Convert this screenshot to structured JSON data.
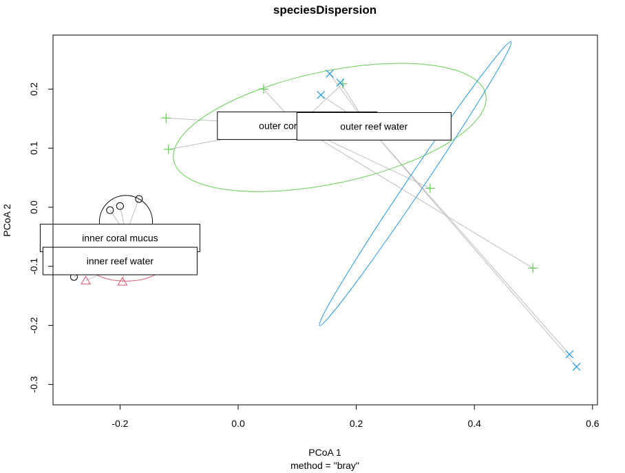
{
  "chart_data": {
    "type": "scatter",
    "title": "speciesDispersion",
    "xlabel": "PCoA 1",
    "ylabel": "PCoA 2",
    "subtitle": "method = \"bray\"",
    "xlim": [
      -0.32,
      0.61
    ],
    "ylim": [
      -0.335,
      0.29
    ],
    "x_ticks": [
      -0.2,
      0.0,
      0.2,
      0.4,
      0.6
    ],
    "y_ticks": [
      -0.3,
      -0.2,
      -0.1,
      0.0,
      0.1,
      0.2
    ],
    "x_tick_labels": [
      "-0.2",
      "0.0",
      "0.2",
      "0.4",
      "0.6"
    ],
    "y_tick_labels": [
      "-0.3",
      "-0.2",
      "-0.1",
      "0.0",
      "0.1",
      "0.2"
    ],
    "grid": false,
    "series": [
      {
        "name": "inner coral mucus",
        "color": "#000000",
        "marker": "circle",
        "centroid": [
          -0.19,
          -0.045
        ],
        "points": [
          [
            -0.217,
            -0.005
          ],
          [
            -0.2,
            0.002
          ],
          [
            -0.168,
            0.014
          ],
          [
            -0.278,
            -0.118
          ]
        ],
        "ellipse": {
          "cx": -0.19,
          "cy": -0.025,
          "rx": 0.045,
          "ry": 0.045,
          "angle": 0
        }
      },
      {
        "name": "inner reef water",
        "color": "#DF536B",
        "marker": "triangle",
        "centroid": [
          -0.19,
          -0.095
        ],
        "points": [
          [
            -0.258,
            -0.124
          ],
          [
            -0.196,
            -0.126
          ]
        ],
        "ellipse": {
          "cx": -0.19,
          "cy": -0.095,
          "rx": 0.065,
          "ry": 0.03,
          "angle": 0
        }
      },
      {
        "name": "outer coral mucus",
        "color": "#61D04F",
        "marker": "plus",
        "centroid": [
          0.1,
          0.138
        ],
        "points": [
          [
            0.043,
            0.2
          ],
          [
            -0.122,
            0.151
          ],
          [
            -0.118,
            0.098
          ],
          [
            0.177,
            0.209
          ],
          [
            0.325,
            0.032
          ],
          [
            0.499,
            -0.103
          ]
        ],
        "ellipse": {
          "cx": 0.155,
          "cy": 0.135,
          "rx": 0.27,
          "ry": 0.095,
          "angle": -12
        }
      },
      {
        "name": "outer reef water",
        "color": "#2297E6",
        "marker": "x",
        "centroid": [
          0.22,
          0.137
        ],
        "points": [
          [
            0.155,
            0.226
          ],
          [
            0.14,
            0.19
          ],
          [
            0.173,
            0.211
          ],
          [
            0.561,
            -0.249
          ],
          [
            0.573,
            -0.27
          ]
        ],
        "ellipse": {
          "cx": 0.3,
          "cy": 0.04,
          "rx": 0.29,
          "ry": 0.014,
          "angle": -56
        }
      }
    ],
    "labels": [
      {
        "text": "outer coral mucus",
        "x": 0.1,
        "y": 0.138,
        "group": "outer coral mucus"
      },
      {
        "text": "outer reef water",
        "x": 0.23,
        "y": 0.137,
        "group": "outer reef water"
      },
      {
        "text": "inner coral mucus",
        "x": -0.2,
        "y": -0.052,
        "group": "inner coral mucus"
      },
      {
        "text": "inner reef water",
        "x": -0.2,
        "y": -0.091,
        "group": "inner reef water"
      }
    ]
  }
}
